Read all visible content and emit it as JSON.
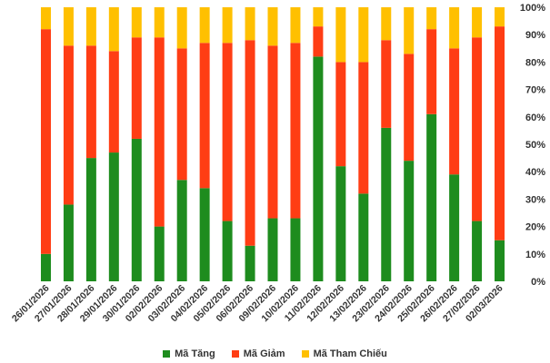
{
  "chart_data": {
    "type": "bar",
    "stacked": true,
    "percent": true,
    "categories": [
      "26/01/2026",
      "27/01/2026",
      "28/01/2026",
      "29/01/2026",
      "30/01/2026",
      "02/02/2026",
      "03/02/2026",
      "04/02/2026",
      "05/02/2026",
      "06/02/2026",
      "09/02/2026",
      "10/02/2026",
      "11/02/2026",
      "12/02/2026",
      "13/02/2026",
      "23/02/2026",
      "24/02/2026",
      "25/02/2026",
      "26/02/2026",
      "27/02/2026",
      "02/03/2026"
    ],
    "series": [
      {
        "name": "Mã Tăng",
        "color": "#1e8c1e",
        "values": [
          10,
          28,
          45,
          47,
          52,
          20,
          37,
          34,
          22,
          13,
          23,
          23,
          82,
          42,
          32,
          56,
          44,
          61,
          39,
          22,
          15
        ]
      },
      {
        "name": "Mã Giảm",
        "color": "#ff3d14",
        "values": [
          82,
          58,
          41,
          37,
          37,
          69,
          48,
          53,
          65,
          75,
          63,
          64,
          11,
          38,
          48,
          32,
          39,
          31,
          46,
          67,
          78
        ]
      },
      {
        "name": "Mã Tham Chiếu",
        "color": "#ffc000",
        "values": [
          8,
          14,
          14,
          16,
          11,
          11,
          15,
          13,
          13,
          12,
          14,
          13,
          7,
          20,
          20,
          12,
          17,
          8,
          15,
          11,
          7
        ]
      }
    ],
    "ylim": [
      0,
      100
    ],
    "yticks": [
      "0%",
      "10%",
      "20%",
      "30%",
      "40%",
      "50%",
      "60%",
      "70%",
      "80%",
      "90%",
      "100%"
    ],
    "ytick_values": [
      0,
      10,
      20,
      30,
      40,
      50,
      60,
      70,
      80,
      90,
      100
    ],
    "legend_position": "bottom",
    "grid": false,
    "title": "",
    "xlabel": "",
    "ylabel": ""
  }
}
